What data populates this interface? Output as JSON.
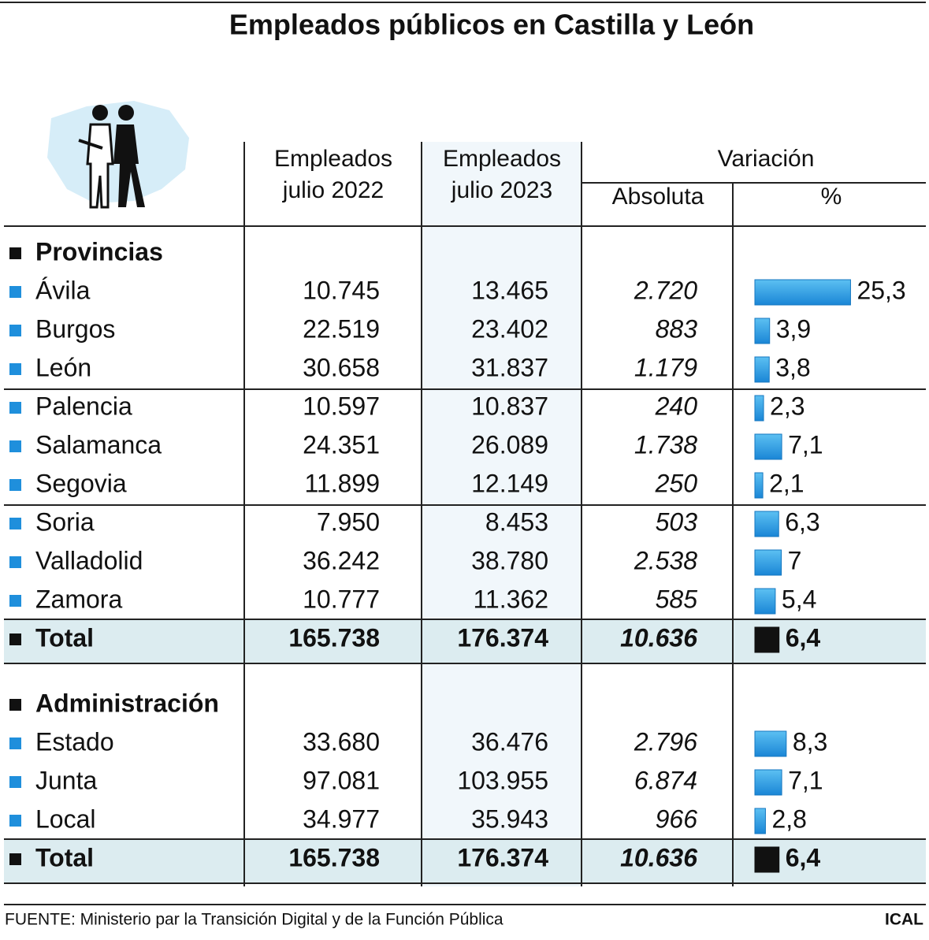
{
  "title": "Empleados públicos en Castilla y León",
  "header": {
    "col2022": [
      "Empleados",
      "julio 2022"
    ],
    "col2023": [
      "Empleados",
      "julio 2023"
    ],
    "variation": "Variación",
    "absolute": "Absoluta",
    "percent": "%"
  },
  "sections": [
    {
      "title": "Provincias",
      "rows": [
        {
          "name": "Ávila",
          "v2022": "10.745",
          "v2023": "13.465",
          "abs": "2.720",
          "pct": {
            "value": 25.3,
            "label": "25,3"
          }
        },
        {
          "name": "Burgos",
          "v2022": "22.519",
          "v2023": "23.402",
          "abs": "883",
          "pct": {
            "value": 3.9,
            "label": "3,9"
          }
        },
        {
          "name": "León",
          "v2022": "30.658",
          "v2023": "31.837",
          "abs": "1.179",
          "pct": {
            "value": 3.8,
            "label": "3,8"
          }
        },
        {
          "name": "Palencia",
          "v2022": "10.597",
          "v2023": "10.837",
          "abs": "240",
          "pct": {
            "value": 2.3,
            "label": "2,3"
          }
        },
        {
          "name": "Salamanca",
          "v2022": "24.351",
          "v2023": "26.089",
          "abs": "1.738",
          "pct": {
            "value": 7.1,
            "label": "7,1"
          }
        },
        {
          "name": "Segovia",
          "v2022": "11.899",
          "v2023": "12.149",
          "abs": "250",
          "pct": {
            "value": 2.1,
            "label": "2,1"
          }
        },
        {
          "name": "Soria",
          "v2022": "7.950",
          "v2023": "8.453",
          "abs": "503",
          "pct": {
            "value": 6.3,
            "label": "6,3"
          }
        },
        {
          "name": "Valladolid",
          "v2022": "36.242",
          "v2023": "38.780",
          "abs": "2.538",
          "pct": {
            "value": 7,
            "label": "7"
          }
        },
        {
          "name": "Zamora",
          "v2022": "10.777",
          "v2023": "11.362",
          "abs": "585",
          "pct": {
            "value": 5.4,
            "label": "5,4"
          }
        }
      ],
      "total": {
        "name": "Total",
        "v2022": "165.738",
        "v2023": "176.374",
        "abs": "10.636",
        "pct": {
          "value": 6.4,
          "label": "6,4"
        }
      }
    },
    {
      "title": "Administración",
      "rows": [
        {
          "name": "Estado",
          "v2022": "33.680",
          "v2023": "36.476",
          "abs": "2.796",
          "pct": {
            "value": 8.3,
            "label": "8,3"
          }
        },
        {
          "name": "Junta",
          "v2022": "97.081",
          "v2023": "103.955",
          "abs": "6.874",
          "pct": {
            "value": 7.1,
            "label": "7,1"
          }
        },
        {
          "name": "Local",
          "v2022": "34.977",
          "v2023": "35.943",
          "abs": "966",
          "pct": {
            "value": 2.8,
            "label": "2,8"
          }
        }
      ],
      "total": {
        "name": "Total",
        "v2022": "165.738",
        "v2023": "176.374",
        "abs": "10.636",
        "pct": {
          "value": 6.4,
          "label": "6,4"
        }
      }
    }
  ],
  "source": "FUENTE: Ministerio par la Transición Digital y de la Función Pública",
  "credit": "ICAL"
}
